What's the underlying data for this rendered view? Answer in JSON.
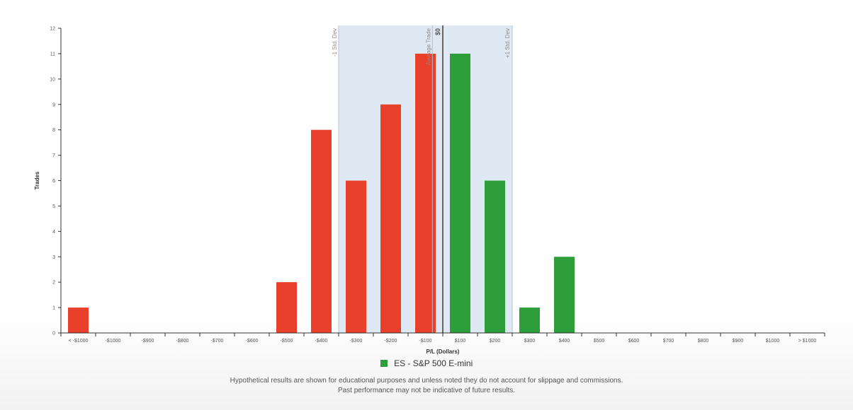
{
  "chart_data": {
    "type": "bar",
    "categories": [
      "< -$1000",
      "-$1000",
      "-$900",
      "-$800",
      "-$700",
      "-$600",
      "-$500",
      "-$400",
      "-$300",
      "-$200",
      "-$100",
      "$100",
      "$200",
      "$300",
      "$400",
      "$500",
      "$600",
      "$700",
      "$800",
      "$900",
      "$1000",
      "> $1000"
    ],
    "values": [
      1,
      0,
      0,
      0,
      0,
      0,
      2,
      8,
      6,
      9,
      11,
      11,
      6,
      1,
      3,
      0,
      0,
      0,
      0,
      0,
      0,
      0
    ],
    "xlabel": "P/L (Dollars)",
    "ylabel": "Trades",
    "ylim": [
      0,
      12
    ],
    "yticks": [
      0,
      1,
      2,
      3,
      4,
      5,
      6,
      7,
      8,
      9,
      10,
      11,
      12
    ],
    "grid": false,
    "legend_position": "bottom-center",
    "series": [
      {
        "name": "ES - S&P 500 E-mini",
        "values": [
          1,
          0,
          0,
          0,
          0,
          0,
          2,
          8,
          6,
          9,
          11,
          11,
          6,
          1,
          3,
          0,
          0,
          0,
          0,
          0,
          0,
          0
        ]
      }
    ],
    "band": {
      "from_index": 7.5,
      "to_index": 12.5,
      "label_low": "-1 Std. Dev",
      "label_high": "+1 Std. Dev"
    },
    "average_line": {
      "index": 10.2,
      "label": "Average Trade"
    },
    "zero_line": {
      "index": 10.5,
      "label": "$0"
    },
    "colors": {
      "loss": "#e8402a",
      "win": "#2e9e3a",
      "band": "#dfe9f3",
      "band_edge": "#c7d3e0"
    }
  },
  "legend": {
    "label": "ES - S&P 500 E-mini",
    "color": "#2e9e3a"
  },
  "disclaimer": {
    "line1": "Hypothetical results are shown for educational purposes and unless noted they do not account for slippage and commissions.",
    "line2": "Past performance may not be indicative of future results."
  }
}
